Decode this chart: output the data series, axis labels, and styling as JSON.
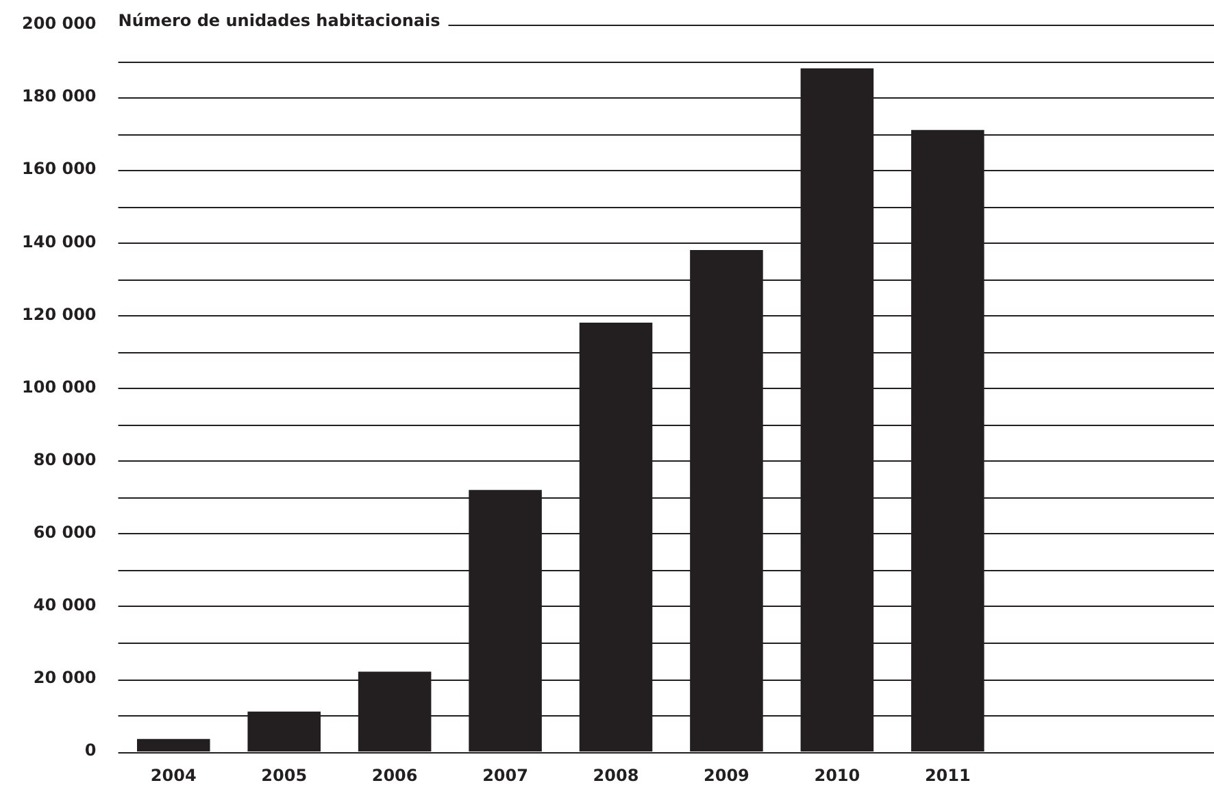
{
  "chart_data": {
    "type": "bar",
    "ylabel": "Número de unidades habitacionais",
    "categories": [
      "2004",
      "2005",
      "2006",
      "2007",
      "2008",
      "2009",
      "2010",
      "2011"
    ],
    "values": [
      3500,
      11000,
      22000,
      72000,
      118000,
      138000,
      188000,
      171000
    ],
    "color": "#231f20",
    "ylim": [
      0,
      200000
    ],
    "yticks": [
      {
        "value": 0,
        "label": "0"
      },
      {
        "value": 10000,
        "label": null
      },
      {
        "value": 20000,
        "label": "20 000"
      },
      {
        "value": 30000,
        "label": null
      },
      {
        "value": 40000,
        "label": "40 000"
      },
      {
        "value": 50000,
        "label": null
      },
      {
        "value": 60000,
        "label": "60 000"
      },
      {
        "value": 70000,
        "label": null
      },
      {
        "value": 80000,
        "label": "80 000"
      },
      {
        "value": 90000,
        "label": null
      },
      {
        "value": 100000,
        "label": "100 000"
      },
      {
        "value": 110000,
        "label": null
      },
      {
        "value": 120000,
        "label": "120 000"
      },
      {
        "value": 130000,
        "label": null
      },
      {
        "value": 140000,
        "label": "140 000"
      },
      {
        "value": 150000,
        "label": null
      },
      {
        "value": 160000,
        "label": "160 000"
      },
      {
        "value": 170000,
        "label": null
      },
      {
        "value": 180000,
        "label": "180 000"
      },
      {
        "value": 190000,
        "label": null
      },
      {
        "value": 200000,
        "label": "200 000"
      }
    ],
    "grid": "y",
    "legend": false
  }
}
